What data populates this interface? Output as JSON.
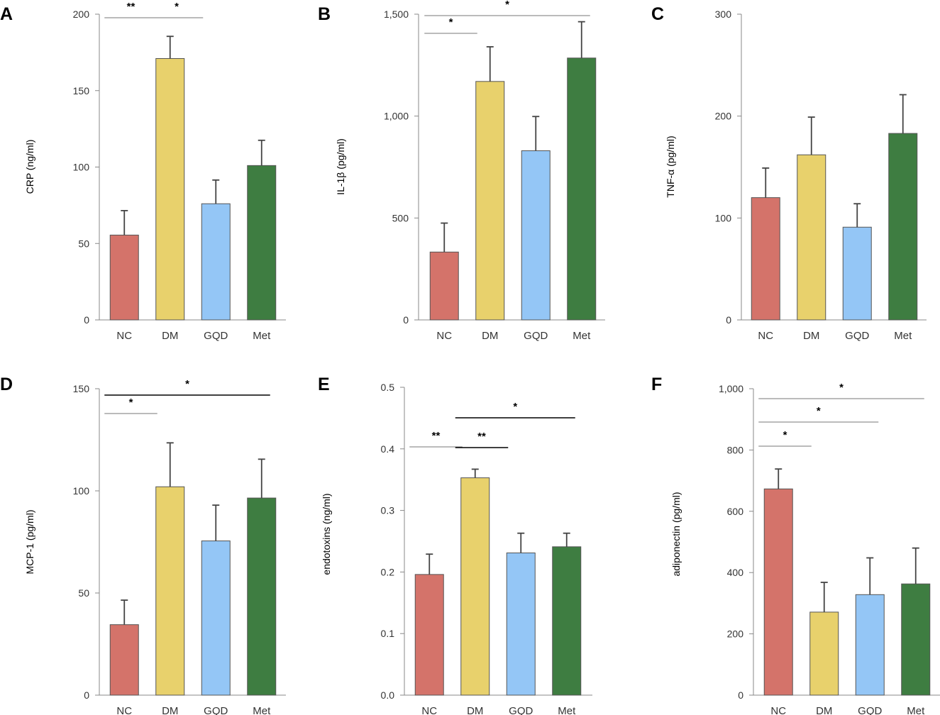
{
  "colors": {
    "NC": "#d4736a",
    "DM": "#e8d16c",
    "GQD": "#94c6f6",
    "Met": "#3e7d41",
    "axis": "#888888",
    "errorbar": "#444444",
    "bracket_thin": "#777777",
    "bracket_thick": "#000000"
  },
  "chart_data": [
    {
      "panel": "A",
      "type": "bar",
      "categories": [
        "NC",
        "DM",
        "GQD",
        "Met"
      ],
      "values": [
        55.5,
        171,
        76,
        101
      ],
      "errors": [
        16,
        14.5,
        15.5,
        16.5
      ],
      "ylabel": "CRP (ng/ml)",
      "ylim": [
        0,
        200
      ],
      "yticks": [
        0,
        50,
        100,
        150,
        200
      ],
      "ytick_labels": [
        "0",
        "50",
        "100",
        "150",
        "200"
      ],
      "significance": [
        {
          "from": 0,
          "to": 1,
          "label": "**",
          "style": "thin"
        },
        {
          "from": 1,
          "to": 2,
          "label": "*",
          "style": "thin"
        }
      ]
    },
    {
      "panel": "B",
      "type": "bar",
      "categories": [
        "NC",
        "DM",
        "GQD",
        "Met"
      ],
      "values": [
        333,
        1170,
        830,
        1285
      ],
      "errors": [
        142,
        170,
        168,
        178
      ],
      "ylabel": "IL-1β (pg/ml)",
      "ylim": [
        0,
        1500
      ],
      "yticks": [
        0,
        500,
        1000,
        1500
      ],
      "ytick_labels": [
        "0",
        "500",
        "1,000",
        "1,500"
      ],
      "significance": [
        {
          "from": 0,
          "to": 1,
          "label": "*",
          "style": "thin"
        },
        {
          "from": 0,
          "to": 3,
          "label": "*",
          "style": "thin"
        }
      ]
    },
    {
      "panel": "C",
      "type": "bar",
      "categories": [
        "NC",
        "DM",
        "GQD",
        "Met"
      ],
      "values": [
        120,
        162,
        91,
        183
      ],
      "errors": [
        29,
        37,
        23,
        38
      ],
      "ylabel": "TNF-α (pg/ml)",
      "ylim": [
        0,
        300
      ],
      "yticks": [
        0,
        100,
        200,
        300
      ],
      "ytick_labels": [
        "0",
        "100",
        "200",
        "300"
      ],
      "significance": []
    },
    {
      "panel": "D",
      "type": "bar",
      "categories": [
        "NC",
        "DM",
        "GQD",
        "Met"
      ],
      "values": [
        34.5,
        102,
        75.5,
        96.5
      ],
      "errors": [
        12,
        21.5,
        17.5,
        19
      ],
      "ylabel": "MCP-1 (pg/ml)",
      "ylim": [
        0,
        150
      ],
      "yticks": [
        0,
        50,
        100,
        150
      ],
      "ytick_labels": [
        "0",
        "50",
        "100",
        "150"
      ],
      "significance": [
        {
          "from": 0,
          "to": 1,
          "label": "*",
          "style": "thin"
        },
        {
          "from": 0,
          "to": 3,
          "label": "*",
          "style": "thick"
        }
      ]
    },
    {
      "panel": "E",
      "type": "bar",
      "categories": [
        "NC",
        "DM",
        "GQD",
        "Met"
      ],
      "values": [
        0.196,
        0.353,
        0.231,
        0.241
      ],
      "errors": [
        0.033,
        0.014,
        0.032,
        0.022
      ],
      "ylabel": "endotoxins (ng/ml)",
      "ylim": [
        0,
        0.5
      ],
      "yticks": [
        0,
        0.1,
        0.2,
        0.3,
        0.4,
        0.5
      ],
      "ytick_labels": [
        "0.0",
        "0.1",
        "0.2",
        "0.3",
        "0.4",
        "0.5"
      ],
      "significance": [
        {
          "from": 0,
          "to": 1,
          "label": "**",
          "style": "thin"
        },
        {
          "from": 1,
          "to": 2,
          "label": "**",
          "style": "thick"
        },
        {
          "from": 1,
          "to": 3,
          "label": "*",
          "style": "thick"
        }
      ]
    },
    {
      "panel": "F",
      "type": "bar",
      "categories": [
        "NC",
        "DM",
        "GQD",
        "Met"
      ],
      "values": [
        673,
        271,
        328,
        363
      ],
      "errors": [
        65,
        97,
        120,
        117
      ],
      "ylabel": "adiponectin (pg/ml)",
      "ylim": [
        0,
        1000
      ],
      "yticks": [
        0,
        200,
        400,
        600,
        800,
        1000
      ],
      "ytick_labels": [
        "0",
        "200",
        "400",
        "600",
        "800",
        "1,000"
      ],
      "significance": [
        {
          "from": 0,
          "to": 1,
          "label": "*",
          "style": "thin"
        },
        {
          "from": 0,
          "to": 2,
          "label": "*",
          "style": "thin"
        },
        {
          "from": 0,
          "to": 3,
          "label": "*",
          "style": "thin"
        }
      ]
    }
  ]
}
